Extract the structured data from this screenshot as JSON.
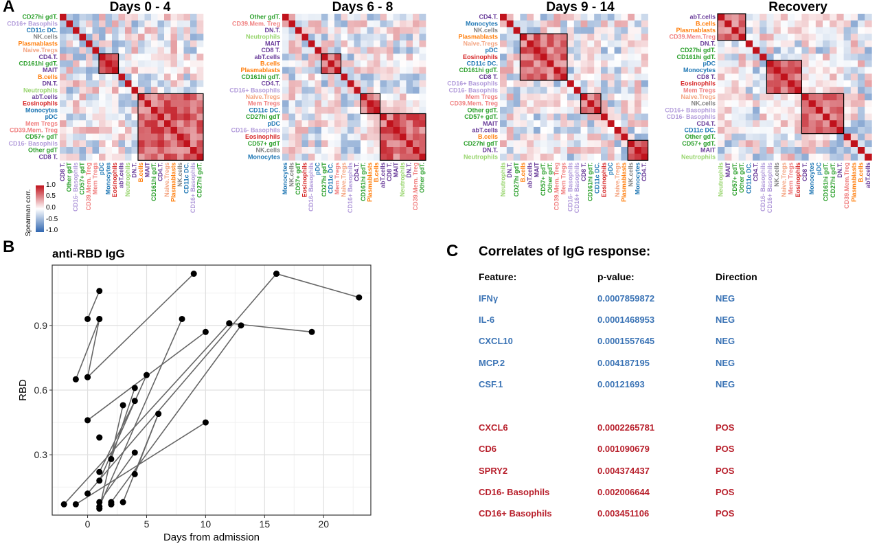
{
  "panel_a": {
    "letter": "A",
    "legend": {
      "title": "Spearman corr.",
      "ticks": [
        "1.0",
        "0.5",
        "0.0",
        "-0.5",
        "-1.0"
      ],
      "color_high": "#c0121c",
      "color_mid": "#ffffff",
      "color_low": "#2f66b0"
    },
    "heatmaps": [
      {
        "title": "Days 0 - 4",
        "row_labels": [
          {
            "t": "CD27hi gdT.",
            "c": "#2ca02c"
          },
          {
            "t": "CD16+ Basophils",
            "c": "#b39ddb"
          },
          {
            "t": "CD11c DC.",
            "c": "#1f77b4"
          },
          {
            "t": "NK.cells",
            "c": "#808080"
          },
          {
            "t": "Plasmablasts",
            "c": "#ff7f0e"
          },
          {
            "t": "Naive.Tregs",
            "c": "#f4a582"
          },
          {
            "t": "CD4.T.",
            "c": "#6a3d9a"
          },
          {
            "t": "CD161hi gdT.",
            "c": "#2ca02c"
          },
          {
            "t": "MAIT",
            "c": "#6a3d9a"
          },
          {
            "t": "B.cells",
            "c": "#ff7f0e"
          },
          {
            "t": "DN.T.",
            "c": "#6a3d9a"
          },
          {
            "t": "Neutrophils",
            "c": "#98d56e"
          },
          {
            "t": "abT.cells",
            "c": "#6a3d9a"
          },
          {
            "t": "Eosinophils",
            "c": "#d62728"
          },
          {
            "t": "Monocytes",
            "c": "#1f77b4"
          },
          {
            "t": "pDC",
            "c": "#1f77b4"
          },
          {
            "t": "Mem Tregs",
            "c": "#f08080"
          },
          {
            "t": "CD39.Mem. Treg",
            "c": "#f08080"
          },
          {
            "t": "CD57+ gdT",
            "c": "#2ca02c"
          },
          {
            "t": "CD16- Basophils",
            "c": "#b39ddb"
          },
          {
            "t": "Other gdT",
            "c": "#2ca02c"
          },
          {
            "t": "CD8 T.",
            "c": "#6a3d9a"
          }
        ],
        "boxes": [
          [
            6,
            8
          ],
          [
            12,
            21
          ]
        ]
      },
      {
        "title": "Days 6 - 8",
        "row_labels": [
          {
            "t": "Other gdT.",
            "c": "#2ca02c"
          },
          {
            "t": "CD39.Mem. Treg",
            "c": "#f08080"
          },
          {
            "t": "DN.T.",
            "c": "#6a3d9a"
          },
          {
            "t": "Neutrophils",
            "c": "#98d56e"
          },
          {
            "t": "MAIT",
            "c": "#6a3d9a"
          },
          {
            "t": "CD8 T.",
            "c": "#6a3d9a"
          },
          {
            "t": "abT.cells",
            "c": "#6a3d9a"
          },
          {
            "t": "B.cells",
            "c": "#ff7f0e"
          },
          {
            "t": "Plasmablasts",
            "c": "#ff7f0e"
          },
          {
            "t": "CD161hi gdT.",
            "c": "#2ca02c"
          },
          {
            "t": "CD4.T.",
            "c": "#6a3d9a"
          },
          {
            "t": "CD16+ Basophils",
            "c": "#b39ddb"
          },
          {
            "t": "Naive.Tregs",
            "c": "#f4a582"
          },
          {
            "t": "Mem Tregs",
            "c": "#f08080"
          },
          {
            "t": "CD11c DC.",
            "c": "#1f77b4"
          },
          {
            "t": "CD27hi gdT",
            "c": "#2ca02c"
          },
          {
            "t": "pDC",
            "c": "#1f77b4"
          },
          {
            "t": "CD16- Basophils",
            "c": "#b39ddb"
          },
          {
            "t": "Eosinophils",
            "c": "#d62728"
          },
          {
            "t": "CD57+ gdT",
            "c": "#2ca02c"
          },
          {
            "t": "NK.cells",
            "c": "#808080"
          },
          {
            "t": "Monocytes",
            "c": "#1f77b4"
          }
        ],
        "boxes": [
          [
            6,
            8
          ],
          [
            12,
            14
          ],
          [
            15,
            21
          ]
        ]
      },
      {
        "title": "Days 9 - 14",
        "row_labels": [
          {
            "t": "CD4.T.",
            "c": "#6a3d9a"
          },
          {
            "t": "Monocytes",
            "c": "#1f77b4"
          },
          {
            "t": "NK.cells",
            "c": "#808080"
          },
          {
            "t": "Plasmablasts",
            "c": "#ff7f0e"
          },
          {
            "t": "Naive.Tregs",
            "c": "#f4a582"
          },
          {
            "t": "pDC",
            "c": "#1f77b4"
          },
          {
            "t": "Eosinophils",
            "c": "#d62728"
          },
          {
            "t": "CD11c DC.",
            "c": "#1f77b4"
          },
          {
            "t": "CD161hi gdT.",
            "c": "#2ca02c"
          },
          {
            "t": "CD8 T.",
            "c": "#6a3d9a"
          },
          {
            "t": "CD16+ Basophils",
            "c": "#b39ddb"
          },
          {
            "t": "CD16- Basophils",
            "c": "#b39ddb"
          },
          {
            "t": "Mem Tregs",
            "c": "#f08080"
          },
          {
            "t": "CD39.Mem. Treg",
            "c": "#f08080"
          },
          {
            "t": "Other gdT.",
            "c": "#2ca02c"
          },
          {
            "t": "CD57+ gdT.",
            "c": "#2ca02c"
          },
          {
            "t": "MAIT",
            "c": "#6a3d9a"
          },
          {
            "t": "abT.cells",
            "c": "#6a3d9a"
          },
          {
            "t": "B.cells",
            "c": "#ff7f0e"
          },
          {
            "t": "CD27hi gdT",
            "c": "#2ca02c"
          },
          {
            "t": "DN.T.",
            "c": "#6a3d9a"
          },
          {
            "t": "Neutrophils",
            "c": "#98d56e"
          }
        ],
        "boxes": [
          [
            3,
            9
          ],
          [
            12,
            14
          ],
          [
            19,
            21
          ]
        ]
      },
      {
        "title": "Recovery",
        "row_labels": [
          {
            "t": "abT.cells",
            "c": "#6a3d9a"
          },
          {
            "t": "B.cells",
            "c": "#ff7f0e"
          },
          {
            "t": "Plasmablasts",
            "c": "#ff7f0e"
          },
          {
            "t": "CD39.Mem.Treg",
            "c": "#f08080"
          },
          {
            "t": "DN.T.",
            "c": "#6a3d9a"
          },
          {
            "t": "CD27hi gdT.",
            "c": "#2ca02c"
          },
          {
            "t": "CD161hi gdT.",
            "c": "#2ca02c"
          },
          {
            "t": "pDC",
            "c": "#1f77b4"
          },
          {
            "t": "Monocytes",
            "c": "#1f77b4"
          },
          {
            "t": "CD8 T.",
            "c": "#6a3d9a"
          },
          {
            "t": "Eosinophils",
            "c": "#d62728"
          },
          {
            "t": "Mem Tregs",
            "c": "#f08080"
          },
          {
            "t": "Naive.Tregs",
            "c": "#f4a582"
          },
          {
            "t": "NK.cells",
            "c": "#808080"
          },
          {
            "t": "CD16+ Basophils",
            "c": "#b39ddb"
          },
          {
            "t": "CD16- Basophils",
            "c": "#b39ddb"
          },
          {
            "t": "CD4.T.",
            "c": "#6a3d9a"
          },
          {
            "t": "CD11c DC.",
            "c": "#1f77b4"
          },
          {
            "t": "Other gdT.",
            "c": "#2ca02c"
          },
          {
            "t": "CD57+ gdT.",
            "c": "#2ca02c"
          },
          {
            "t": "MAIT",
            "c": "#6a3d9a"
          },
          {
            "t": "Neutrophils",
            "c": "#98d56e"
          }
        ],
        "boxes": [
          [
            0,
            3
          ],
          [
            7,
            11
          ],
          [
            12,
            17
          ]
        ]
      }
    ]
  },
  "panel_b": {
    "letter": "B",
    "title": "anti-RBD IgG"
  },
  "panel_c": {
    "letter": "C",
    "title": "Correlates of IgG response:",
    "headers": {
      "feature": "Feature:",
      "pvalue": "p-value:",
      "direction": "Direction"
    },
    "rows": [
      {
        "feature": "IFNγ",
        "pvalue": "0.0007859872",
        "direction": "NEG",
        "color": "#3a73b5"
      },
      {
        "feature": "IL-6",
        "pvalue": "0.0001468953",
        "direction": "NEG",
        "color": "#3a73b5"
      },
      {
        "feature": "CXCL10",
        "pvalue": "0.0001557645",
        "direction": "NEG",
        "color": "#3a73b5"
      },
      {
        "feature": "MCP.2",
        "pvalue": "0.004187195",
        "direction": "NEG",
        "color": "#3a73b5"
      },
      {
        "feature": "CSF.1",
        "pvalue": "0.00121693",
        "direction": "NEG",
        "color": "#3a73b5"
      },
      {
        "feature": "CXCL6",
        "pvalue": "0.0002265781",
        "direction": "POS",
        "color": "#b8202c"
      },
      {
        "feature": "CD6",
        "pvalue": "0.001090679",
        "direction": "POS",
        "color": "#b8202c"
      },
      {
        "feature": "SPRY2",
        "pvalue": "0.004374437",
        "direction": "POS",
        "color": "#b8202c"
      },
      {
        "feature": "CD16- Basophils",
        "pvalue": "0.002006644",
        "direction": "POS",
        "color": "#b8202c"
      },
      {
        "feature": "CD16+ Basophils",
        "pvalue": "0.003451106",
        "direction": "POS",
        "color": "#b8202c"
      }
    ]
  },
  "chart_data": {
    "type": "line",
    "title": "anti-RBD IgG",
    "xlabel": "Days from admission",
    "ylabel": "RBD",
    "xlim": [
      -3,
      24
    ],
    "ylim": [
      0.02,
      1.18
    ],
    "xticks": [
      0,
      5,
      10,
      15,
      20
    ],
    "yticks": [
      0.3,
      0.6,
      0.9
    ],
    "grid": true,
    "series": [
      {
        "x": [
          0,
          1
        ],
        "y": [
          0.93,
          1.06
        ]
      },
      {
        "x": [
          0,
          1
        ],
        "y": [
          0.66,
          0.93
        ]
      },
      {
        "x": [
          -1,
          1
        ],
        "y": [
          0.65,
          0.93
        ]
      },
      {
        "x": [
          0,
          10
        ],
        "y": [
          0.46,
          0.87
        ]
      },
      {
        "x": [
          0,
          9
        ],
        "y": [
          0.66,
          1.14
        ]
      },
      {
        "x": [
          1,
          5
        ],
        "y": [
          0.18,
          0.67
        ]
      },
      {
        "x": [
          1,
          4
        ],
        "y": [
          0.22,
          0.55
        ]
      },
      {
        "x": [
          2,
          4
        ],
        "y": [
          0.28,
          0.61
        ]
      },
      {
        "x": [
          1,
          3
        ],
        "y": [
          0.05,
          0.53
        ]
      },
      {
        "x": [
          1,
          8
        ],
        "y": [
          0.06,
          0.93
        ]
      },
      {
        "x": [
          -2,
          12
        ],
        "y": [
          0.07,
          0.91
        ]
      },
      {
        "x": [
          2,
          13
        ],
        "y": [
          0.08,
          0.9
        ]
      },
      {
        "x": [
          0,
          16
        ],
        "y": [
          0.12,
          1.14
        ]
      },
      {
        "x": [
          -1,
          10
        ],
        "y": [
          0.07,
          0.45
        ]
      },
      {
        "x": [
          3,
          6
        ],
        "y": [
          0.08,
          0.49
        ]
      },
      {
        "x": [
          4,
          6
        ],
        "y": [
          0.21,
          0.49
        ]
      },
      {
        "x": [
          1,
          4
        ],
        "y": [
          0.08,
          0.31
        ]
      },
      {
        "x": [
          12,
          19
        ],
        "y": [
          0.91,
          0.87
        ]
      },
      {
        "x": [
          16,
          23
        ],
        "y": [
          1.14,
          1.03
        ]
      },
      {
        "x": [
          1,
          1
        ],
        "y": [
          0.38,
          0.38
        ]
      },
      {
        "x": [
          2,
          2
        ],
        "y": [
          0.07,
          0.07
        ]
      }
    ]
  }
}
